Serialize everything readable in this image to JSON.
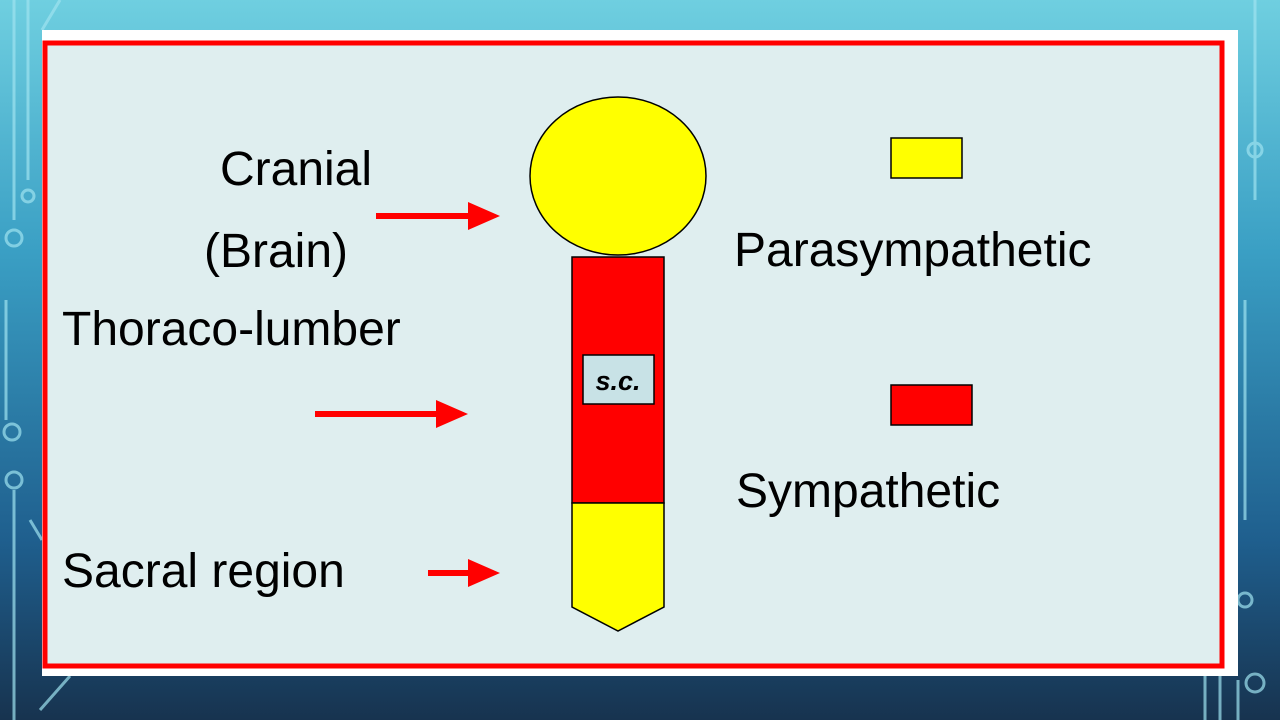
{
  "diagram": {
    "labels": {
      "cranial": "Cranial",
      "brain": "(Brain)",
      "thoraco": "Thoraco-lumber",
      "sacral": "Sacral region",
      "sc": "s.c.",
      "parasympathetic": "Parasympathetic",
      "sympathetic": "Sympathetic"
    },
    "legend": [
      {
        "label": "Parasympathetic",
        "color": "#ffff00"
      },
      {
        "label": "Sympathetic",
        "color": "#ff0000"
      }
    ]
  },
  "colors": {
    "frame_border": "#ff0000",
    "panel_bg": "#dfeeef",
    "parasympathetic": "#ffff00",
    "sympathetic": "#ff0000",
    "arrow": "#ff0000",
    "sc_box": "#c8e2e6"
  },
  "icons": [
    "arrow-right-icon",
    "circuit-decoration"
  ]
}
